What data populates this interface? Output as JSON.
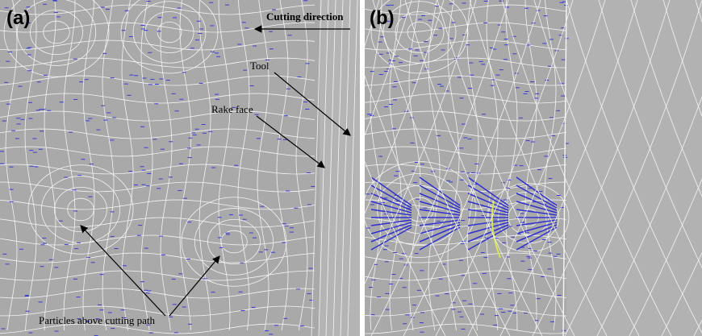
{
  "panel_a": {
    "label": "(a)",
    "annotations": {
      "cutting_direction": "Cutting direction",
      "tool": "Tool",
      "rake_face": "Rake face",
      "particles": "Particles above cutting path"
    }
  },
  "panel_b": {
    "label": "(b)"
  }
}
